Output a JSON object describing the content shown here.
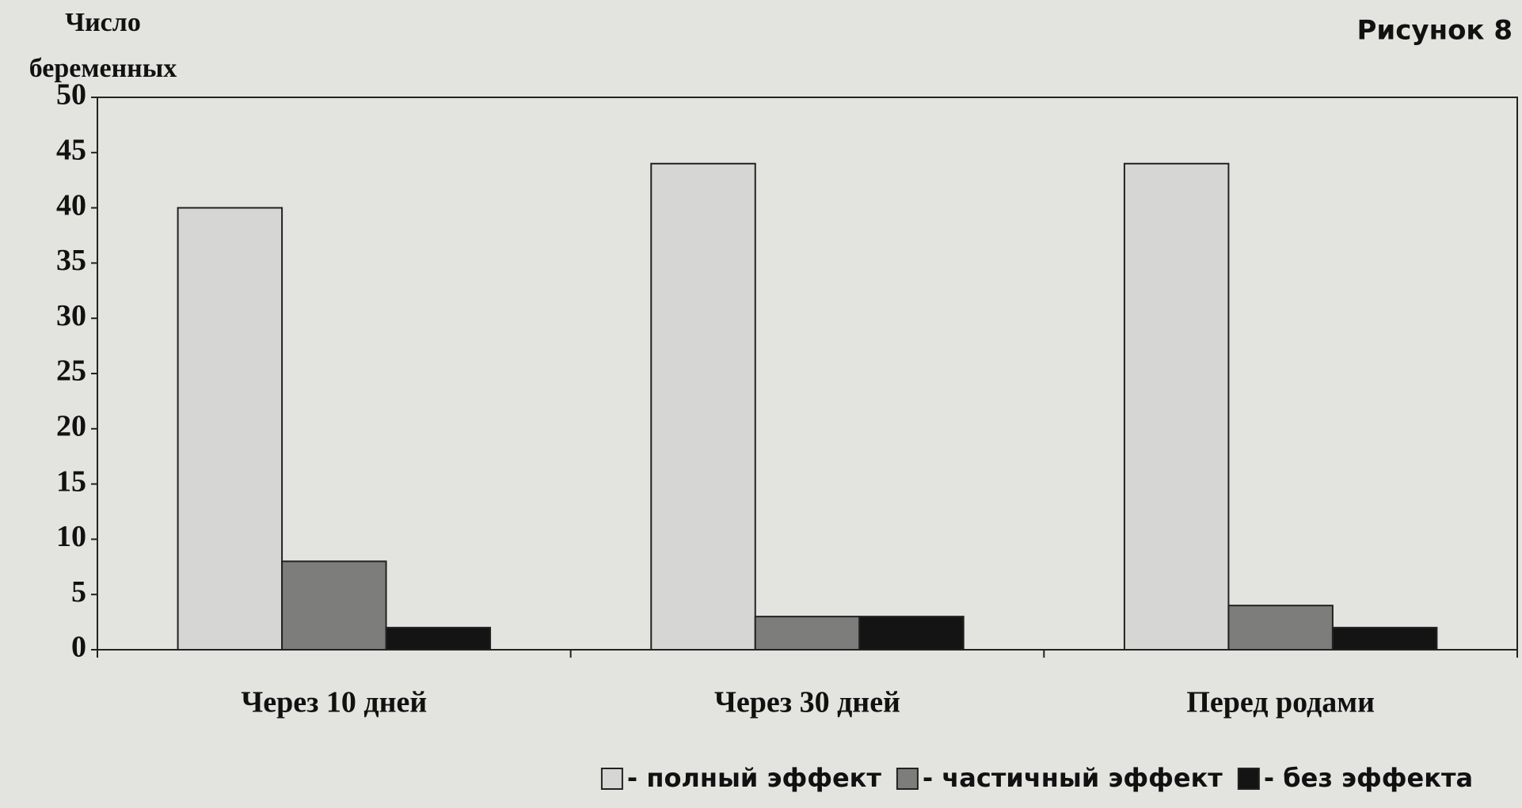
{
  "chart_data": {
    "type": "bar",
    "figure_label": "Рисунок 8",
    "y_label": "Число беременных",
    "categories": [
      "Через 10 дней",
      "Через 30 дней",
      "Перед родами"
    ],
    "series": [
      {
        "name": "- полный эффект",
        "color": "#d6d6d4",
        "values": [
          40,
          44,
          44
        ]
      },
      {
        "name": "- частичный эффект",
        "color": "#7d7d7b",
        "values": [
          8,
          3,
          4
        ]
      },
      {
        "name": "- без эффекта",
        "color": "#141414",
        "values": [
          2,
          3,
          2
        ]
      }
    ],
    "ylim": [
      0,
      50
    ],
    "yticks": [
      0,
      5,
      10,
      15,
      20,
      25,
      30,
      35,
      40,
      45,
      50
    ],
    "grid": false,
    "legend": "bottom"
  }
}
